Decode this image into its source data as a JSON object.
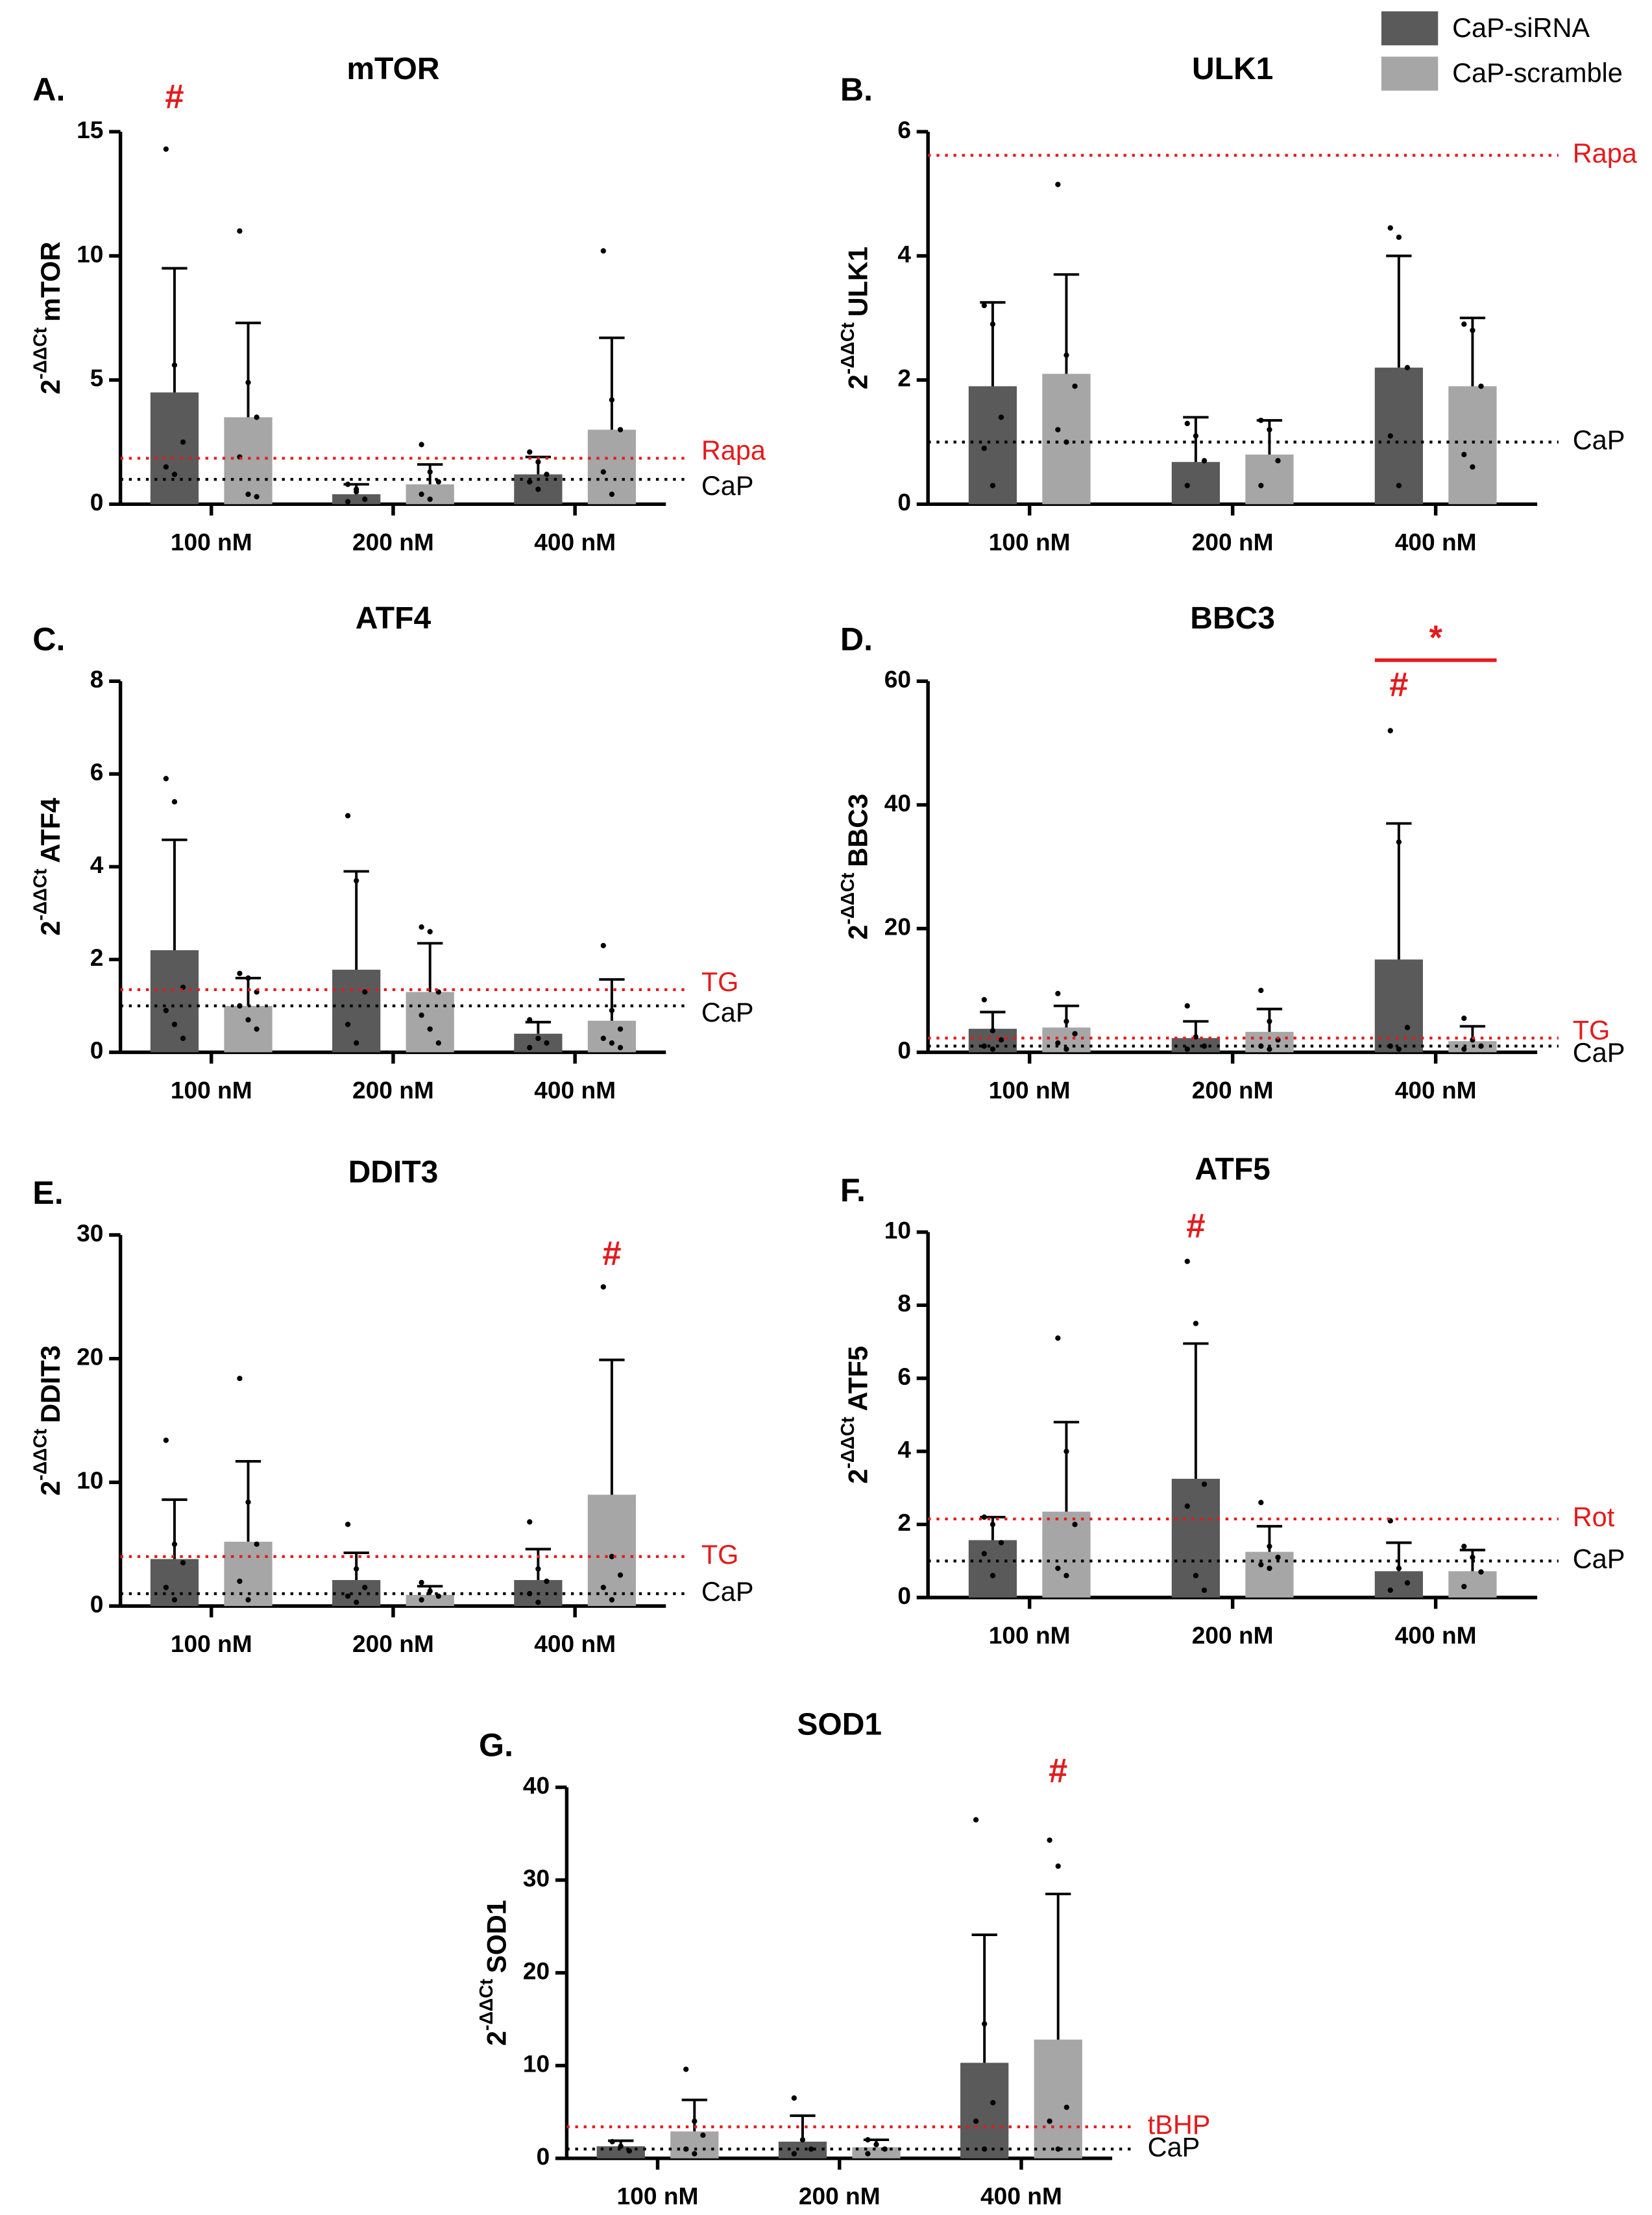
{
  "legend": [
    {
      "name": "CaP-siRNA",
      "color": "#5a5a5a"
    },
    {
      "name": "CaP-scramble",
      "color": "#a6a6a6"
    }
  ],
  "chart_data": [
    {
      "type": "bar",
      "panel": "A.",
      "title": "mTOR",
      "y_label": [
        "2",
        "-ΔΔCt",
        "mTOR"
      ],
      "categories": [
        "100 nM",
        "200 nM",
        "400 nM"
      ],
      "ylim": [
        0,
        15
      ],
      "yticks": [
        0,
        5,
        10,
        15
      ],
      "series": [
        {
          "values": [
            4.5,
            0.4,
            1.2
          ],
          "errors": [
            5.0,
            0.4,
            0.7
          ],
          "points": [
            [
              14.3,
              5.6,
              2.5,
              1.5,
              1.2
            ],
            [
              0.8,
              0.5,
              0.2,
              0.1,
              0.6
            ],
            [
              2.1,
              1.7,
              1.2,
              0.9,
              0.6
            ]
          ]
        },
        {
          "values": [
            3.5,
            0.8,
            3.0
          ],
          "errors": [
            3.8,
            0.8,
            3.7
          ],
          "points": [
            [
              11.0,
              4.9,
              3.5,
              1.9,
              0.4,
              0.3
            ],
            [
              2.4,
              1.3,
              0.9,
              0.4,
              0.2
            ],
            [
              10.2,
              4.2,
              3.0,
              1.3,
              0.4
            ]
          ]
        }
      ],
      "ref_lines": [
        {
          "label": "Rapa",
          "value": 1.85,
          "color": "#e41a1c"
        },
        {
          "label": "CaP",
          "value": 1,
          "color": "#000000"
        }
      ],
      "annotations": [
        {
          "text": "#",
          "group": 0,
          "series": 0,
          "value": 16.3
        }
      ]
    },
    {
      "type": "bar",
      "panel": "B.",
      "title": "ULK1",
      "y_label": [
        "2",
        "-ΔΔCt",
        "ULK1"
      ],
      "categories": [
        "100 nM",
        "200 nM",
        "400 nM"
      ],
      "ylim": [
        0,
        6
      ],
      "yticks": [
        0,
        2,
        4,
        6
      ],
      "series": [
        {
          "values": [
            1.9,
            0.68,
            2.2
          ],
          "errors": [
            1.35,
            0.72,
            1.8
          ],
          "points": [
            [
              3.2,
              2.9,
              1.4,
              0.9,
              0.3
            ],
            [
              1.3,
              1.1,
              0.7,
              0.3
            ],
            [
              4.45,
              4.3,
              2.2,
              1.1,
              0.3
            ]
          ]
        },
        {
          "values": [
            2.1,
            0.8,
            1.9
          ],
          "errors": [
            1.6,
            0.55,
            1.1
          ],
          "points": [
            [
              5.15,
              2.4,
              1.9,
              1.2,
              1.0
            ],
            [
              1.35,
              1.2,
              0.7,
              0.3
            ],
            [
              2.9,
              2.8,
              1.9,
              0.8,
              0.6
            ]
          ]
        }
      ],
      "ref_lines": [
        {
          "label": "Rapa",
          "value": 5.62,
          "color": "#e41a1c"
        },
        {
          "label": "CaP",
          "value": 1,
          "color": "#000000"
        }
      ],
      "annotations": []
    },
    {
      "type": "bar",
      "panel": "C.",
      "title": "ATF4",
      "y_label": [
        "2",
        "-ΔΔCt",
        "ATF4"
      ],
      "categories": [
        "100 nM",
        "200 nM",
        "400 nM"
      ],
      "ylim": [
        0,
        8
      ],
      "yticks": [
        0,
        2,
        4,
        6,
        8
      ],
      "series": [
        {
          "values": [
            2.2,
            1.78,
            0.4
          ],
          "errors": [
            2.38,
            2.12,
            0.25
          ],
          "points": [
            [
              5.9,
              5.4,
              1.4,
              0.9,
              0.6,
              0.3
            ],
            [
              5.1,
              3.7,
              1.3,
              0.6,
              0.2
            ],
            [
              0.7,
              0.3,
              0.2,
              0.1
            ]
          ]
        },
        {
          "values": [
            1.0,
            1.3,
            0.68
          ],
          "errors": [
            0.6,
            1.05,
            0.89
          ],
          "points": [
            [
              1.7,
              1.6,
              1.3,
              1.0,
              0.7,
              0.5
            ],
            [
              2.7,
              2.6,
              1.3,
              0.8,
              0.5,
              0.2
            ],
            [
              2.3,
              0.9,
              0.5,
              0.3,
              0.2,
              0.1
            ]
          ]
        }
      ],
      "ref_lines": [
        {
          "label": "TG",
          "value": 1.35,
          "color": "#e41a1c"
        },
        {
          "label": "CaP",
          "value": 1,
          "color": "#000000"
        }
      ],
      "annotations": []
    },
    {
      "type": "bar",
      "panel": "D.",
      "title": "BBC3",
      "y_label": [
        "2",
        "-ΔΔCt",
        "BBC3"
      ],
      "categories": [
        "100 nM",
        "200 nM",
        "400 nM"
      ],
      "ylim": [
        0,
        60
      ],
      "yticks": [
        0,
        20,
        40,
        60
      ],
      "series": [
        {
          "values": [
            3.8,
            2.3,
            15
          ],
          "errors": [
            2.7,
            2.7,
            22
          ],
          "points": [
            [
              8.5,
              3.5,
              2,
              1,
              0.5
            ],
            [
              7.5,
              2.5,
              1,
              0.5
            ],
            [
              52,
              34,
              4,
              1,
              0.5
            ]
          ]
        },
        {
          "values": [
            4.0,
            3.3,
            1.8
          ],
          "errors": [
            3.5,
            3.7,
            2.4
          ],
          "points": [
            [
              9.5,
              5,
              3,
              1.5,
              0.5
            ],
            [
              10,
              5,
              2,
              1,
              0.5
            ],
            [
              5.5,
              2,
              1,
              0.5
            ]
          ]
        }
      ],
      "ref_lines": [
        {
          "label": "TG",
          "value": 2.3,
          "color": "#e41a1c"
        },
        {
          "label": "CaP",
          "value": 1,
          "color": "#000000"
        }
      ],
      "annotations": [
        {
          "text": "#",
          "group": 2,
          "series": 0,
          "value": 59
        },
        {
          "text": "*",
          "group": 2,
          "bracket": true,
          "value": 63.4
        }
      ]
    },
    {
      "type": "bar",
      "panel": "E.",
      "title": "DDIT3",
      "y_label": [
        "2",
        "-ΔΔCt",
        "DDIT3"
      ],
      "categories": [
        "100 nM",
        "200 nM",
        "400 nM"
      ],
      "ylim": [
        0,
        30
      ],
      "yticks": [
        0,
        10,
        20,
        30
      ],
      "series": [
        {
          "values": [
            3.8,
            2.1,
            2.1
          ],
          "errors": [
            4.8,
            2.2,
            2.5
          ],
          "points": [
            [
              13.4,
              5,
              3.5,
              1.5,
              0.5
            ],
            [
              6.6,
              3,
              1.5,
              0.8,
              0.3
            ],
            [
              6.8,
              3,
              2,
              1,
              0.3
            ]
          ]
        },
        {
          "values": [
            5.2,
            0.9,
            9.0
          ],
          "errors": [
            6.5,
            0.7,
            10.9
          ],
          "points": [
            [
              18.4,
              8.4,
              5,
              2,
              0.5
            ],
            [
              1.9,
              1.2,
              0.8,
              0.5
            ],
            [
              25.8,
              4,
              2.5,
              1.5,
              0.5
            ]
          ]
        }
      ],
      "ref_lines": [
        {
          "label": "TG",
          "value": 4.0,
          "color": "#e41a1c"
        },
        {
          "label": "CaP",
          "value": 1,
          "color": "#000000"
        }
      ],
      "annotations": [
        {
          "text": "#",
          "group": 2,
          "series": 1,
          "value": 28.3
        }
      ]
    },
    {
      "type": "bar",
      "panel": "F.",
      "title": "ATF5",
      "y_label": [
        "2",
        "-ΔΔCt",
        "ATF5"
      ],
      "categories": [
        "100 nM",
        "200 nM",
        "400 nM"
      ],
      "ylim": [
        0,
        10
      ],
      "yticks": [
        0,
        2,
        4,
        6,
        8,
        10
      ],
      "series": [
        {
          "values": [
            1.57,
            3.25,
            0.72
          ],
          "errors": [
            0.63,
            3.7,
            0.78
          ],
          "points": [
            [
              2.2,
              2.0,
              1.5,
              1.2,
              0.6
            ],
            [
              9.2,
              7.5,
              3.1,
              2.5,
              0.6,
              0.2
            ],
            [
              2.1,
              0.8,
              0.4,
              0.2
            ]
          ]
        },
        {
          "values": [
            2.35,
            1.25,
            0.72
          ],
          "errors": [
            2.45,
            0.7,
            0.58
          ],
          "points": [
            [
              7.1,
              4,
              2,
              0.8,
              0.6
            ],
            [
              2.6,
              1.4,
              1.1,
              0.9,
              0.8
            ],
            [
              1.4,
              1.1,
              0.7,
              0.3
            ]
          ]
        }
      ],
      "ref_lines": [
        {
          "label": "Rot",
          "value": 2.15,
          "color": "#e41a1c"
        },
        {
          "label": "CaP",
          "value": 1,
          "color": "#000000"
        }
      ],
      "annotations": [
        {
          "text": "#",
          "group": 1,
          "series": 0,
          "value": 10.1
        }
      ]
    },
    {
      "type": "bar",
      "panel": "G.",
      "title": "SOD1",
      "y_label": [
        "2",
        "-ΔΔCt",
        "SOD1"
      ],
      "categories": [
        "100 nM",
        "200 nM",
        "400 nM"
      ],
      "ylim": [
        0,
        40
      ],
      "yticks": [
        0,
        10,
        20,
        30,
        40
      ],
      "series": [
        {
          "values": [
            1.3,
            1.8,
            10.3
          ],
          "errors": [
            0.6,
            2.8,
            13.8
          ],
          "points": [
            [
              1.8,
              1.3,
              0.8
            ],
            [
              6.5,
              2,
              1,
              0.5
            ],
            [
              36.5,
              14.5,
              6,
              4,
              1
            ]
          ]
        },
        {
          "values": [
            2.9,
            1.2,
            12.8
          ],
          "errors": [
            3.4,
            0.8,
            15.7
          ],
          "points": [
            [
              9.6,
              4,
              2.5,
              1,
              0.5
            ],
            [
              2,
              1.5,
              1,
              0.5
            ],
            [
              34.3,
              31.5,
              5.5,
              4,
              1
            ]
          ]
        }
      ],
      "ref_lines": [
        {
          "label": "tBHP",
          "value": 3.4,
          "color": "#e41a1c"
        },
        {
          "label": "CaP",
          "value": 1,
          "color": "#000000"
        }
      ],
      "annotations": [
        {
          "text": "#",
          "group": 2,
          "series": 1,
          "value": 41.5
        }
      ]
    }
  ]
}
